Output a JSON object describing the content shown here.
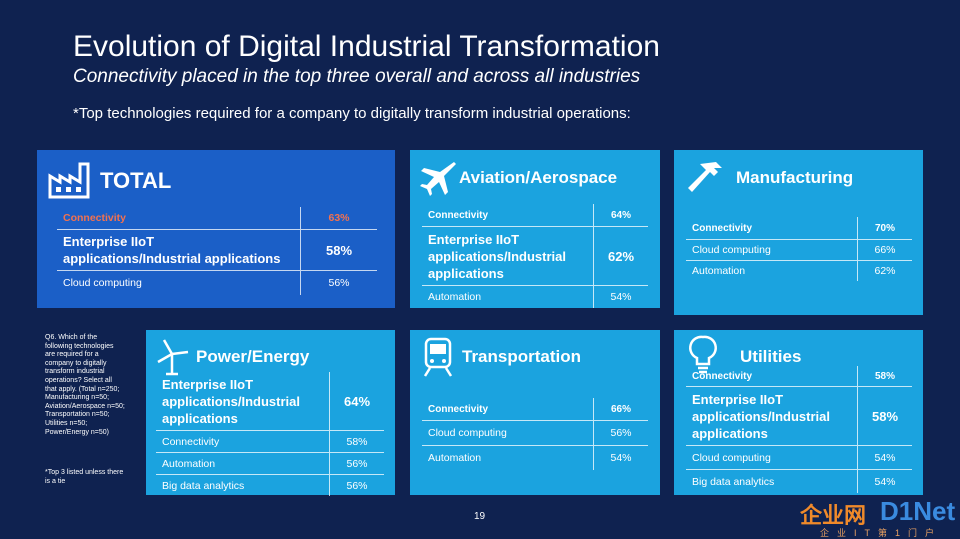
{
  "header": {
    "title": "Evolution of Digital Industrial Transformation",
    "subtitle": "Connectivity placed in the top three overall and across all industries",
    "note": "*Top technologies required for a company to digitally transform industrial operations:"
  },
  "panels": [
    {
      "title": "TOTAL",
      "rows": [
        {
          "label": "Connectivity",
          "value": "63%"
        },
        {
          "label": "Enterprise IIoT applications/Industrial applications",
          "value": "58%"
        },
        {
          "label": "Cloud computing",
          "value": "56%"
        }
      ]
    },
    {
      "title": "Aviation/Aerospace",
      "rows": [
        {
          "label": "Connectivity",
          "value": "64%"
        },
        {
          "label": "Enterprise IIoT applications/Industrial applications",
          "value": "62%"
        },
        {
          "label": "Automation",
          "value": "54%"
        }
      ]
    },
    {
      "title": "Manufacturing",
      "rows": [
        {
          "label": "Connectivity",
          "value": "70%"
        },
        {
          "label": "Cloud computing",
          "value": "66%"
        },
        {
          "label": "Automation",
          "value": "62%"
        }
      ]
    },
    {
      "title": "Power/Energy",
      "rows": [
        {
          "label": "Enterprise IIoT applications/Industrial applications",
          "value": "64%"
        },
        {
          "label": "Connectivity",
          "value": "58%"
        },
        {
          "label": "Automation",
          "value": "56%"
        },
        {
          "label": "Big data analytics",
          "value": "56%"
        }
      ]
    },
    {
      "title": "Transportation",
      "rows": [
        {
          "label": "Connectivity",
          "value": "66%"
        },
        {
          "label": "Cloud computing",
          "value": "56%"
        },
        {
          "label": "Automation",
          "value": "54%"
        }
      ]
    },
    {
      "title": "Utilities",
      "rows": [
        {
          "label": "Connectivity",
          "value": "58%"
        },
        {
          "label": "Enterprise IIoT applications/Industrial applications",
          "value": "58%"
        },
        {
          "label": "Cloud computing",
          "value": "54%"
        },
        {
          "label": "Big data analytics",
          "value": "54%"
        }
      ]
    }
  ],
  "side_note": "Q6. Which of the following technologies are required for a company to digitally transform industrial operations? Select all that apply. (Total n=250; Manufacturing n=50; Aviation/Aerospace n=50; Transportation n=50; Utilities n=50; Power/Energy n=50)",
  "footnote": "*Top 3 listed unless there is a tie",
  "page_number": "19",
  "watermark": {
    "brand": "企业网",
    "logo": "D1Net",
    "tagline": "企业IT第1门户"
  }
}
